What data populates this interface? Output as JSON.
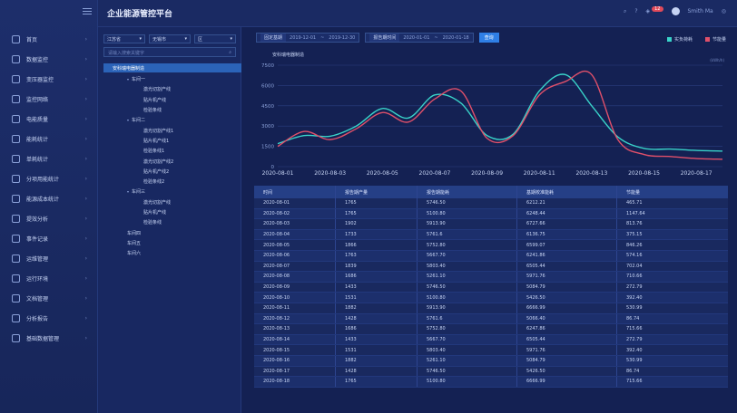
{
  "app": {
    "title": "企业能源管控平台",
    "user": "Smith Ma",
    "badge": "12"
  },
  "nav": [
    {
      "label": "首页"
    },
    {
      "label": "数据监控"
    },
    {
      "label": "变压器监控"
    },
    {
      "label": "监控网络"
    },
    {
      "label": "电能质量"
    },
    {
      "label": "能耗统计"
    },
    {
      "label": "单耗统计"
    },
    {
      "label": "分项用能统计"
    },
    {
      "label": "能源成本统计"
    },
    {
      "label": "提效分析"
    },
    {
      "label": "事件记录"
    },
    {
      "label": "运维管理"
    },
    {
      "label": "运行环境"
    },
    {
      "label": "文档管理"
    },
    {
      "label": "分析报告"
    },
    {
      "label": "基础数据管理"
    }
  ],
  "filters": {
    "province": "江苏省",
    "city": "无锡市",
    "district": "区",
    "search_placeholder": "请输入搜索关键字"
  },
  "tree": {
    "root": "安科瑞电器制造",
    "nodes": [
      {
        "label": "车间一",
        "level": 1,
        "arrow": "▾"
      },
      {
        "label": "激光切割产线",
        "level": 2
      },
      {
        "label": "贴片机产线",
        "level": 2
      },
      {
        "label": "检验条线",
        "level": 2
      },
      {
        "label": "车间二",
        "level": 1,
        "arrow": "▾"
      },
      {
        "label": "激光切割产线1",
        "level": 2
      },
      {
        "label": "贴片机产线1",
        "level": 2
      },
      {
        "label": "检验条线1",
        "level": 2
      },
      {
        "label": "激光切割产线2",
        "level": 2
      },
      {
        "label": "贴片机产线2",
        "level": 2
      },
      {
        "label": "检验条线2",
        "level": 2
      },
      {
        "label": "车间三",
        "level": 1,
        "arrow": "▾"
      },
      {
        "label": "激光切割产线",
        "level": 2
      },
      {
        "label": "贴片机产线",
        "level": 2
      },
      {
        "label": "检验条线",
        "level": 2
      },
      {
        "label": "车间四",
        "level": 1
      },
      {
        "label": "车间五",
        "level": 1
      },
      {
        "label": "车间六",
        "level": 1
      }
    ]
  },
  "toolbar": {
    "baseline_label": "固定基期",
    "baseline_start": "2019-12-01",
    "baseline_sep": "~",
    "baseline_end": "2019-12-30",
    "report_label": "报告期时间",
    "report_start": "2020-01-01",
    "report_sep": "~",
    "report_end": "2020-01-18",
    "query": "查询"
  },
  "legend": [
    {
      "name": "实负荷耗",
      "color": "#39d3c9"
    },
    {
      "name": "节能量",
      "color": "#e0506a"
    }
  ],
  "chart_title": "安科瑞电器制造",
  "chart_unit": "(kWh/h)",
  "chart_data": {
    "type": "line",
    "y_ticks": [
      0,
      1500,
      3000,
      4500,
      6000,
      7500
    ],
    "ylim": [
      0,
      7500
    ],
    "x_ticks": [
      "2020-08-01",
      "2020-08-03",
      "2020-08-05",
      "2020-08-07",
      "2020-08-09",
      "2020-08-11",
      "2020-08-13",
      "2020-08-15",
      "2020-08-17"
    ],
    "x": [
      "2020-08-01",
      "2020-08-02",
      "2020-08-03",
      "2020-08-04",
      "2020-08-05",
      "2020-08-06",
      "2020-08-07",
      "2020-08-08",
      "2020-08-09",
      "2020-08-10",
      "2020-08-11",
      "2020-08-12",
      "2020-08-13",
      "2020-08-14",
      "2020-08-15",
      "2020-08-16",
      "2020-08-17",
      "2020-08-18"
    ],
    "series": [
      {
        "name": "实负荷耗",
        "color": "#39d3c9",
        "values": [
          1700,
          2300,
          2250,
          3000,
          4300,
          3600,
          5300,
          4700,
          2300,
          2400,
          5600,
          6800,
          4500,
          2200,
          1350,
          1300,
          1200,
          1150
        ]
      },
      {
        "name": "节能量",
        "color": "#e0506a",
        "values": [
          1500,
          2600,
          2000,
          2800,
          4000,
          3300,
          5000,
          5600,
          2100,
          2300,
          5300,
          6300,
          6800,
          2000,
          900,
          750,
          600,
          550
        ]
      }
    ]
  },
  "table": {
    "headers": [
      "时间",
      "报告期产量",
      "报告期能耗",
      "基期校准能耗",
      "节能量"
    ],
    "rows": [
      [
        "2020-08-01",
        "1765",
        "5746.50",
        "6212.21",
        "465.71"
      ],
      [
        "2020-08-02",
        "1765",
        "5100.80",
        "6248.44",
        "1147.64"
      ],
      [
        "2020-08-03",
        "1902",
        "5913.90",
        "6727.66",
        "813.76"
      ],
      [
        "2020-08-04",
        "1733",
        "5761.6",
        "6136.75",
        "375.15"
      ],
      [
        "2020-08-05",
        "1866",
        "5752.80",
        "6599.07",
        "846.26"
      ],
      [
        "2020-08-06",
        "1763",
        "5667.70",
        "6241.86",
        "574.16"
      ],
      [
        "2020-08-07",
        "1839",
        "5803.40",
        "6505.44",
        "702.04"
      ],
      [
        "2020-08-08",
        "1686",
        "5261.10",
        "5971.76",
        "710.66"
      ],
      [
        "2020-08-09",
        "1433",
        "5746.50",
        "5084.79",
        "272.79"
      ],
      [
        "2020-08-10",
        "1531",
        "5100.80",
        "5426.50",
        "392.40"
      ],
      [
        "2020-08-11",
        "1882",
        "5913.90",
        "6666.99",
        "530.99"
      ],
      [
        "2020-08-12",
        "1428",
        "5761.6",
        "5066.40",
        "86.74"
      ],
      [
        "2020-08-13",
        "1686",
        "5752.80",
        "6247.86",
        "715.66"
      ],
      [
        "2020-08-14",
        "1433",
        "5667.70",
        "6505.44",
        "272.79"
      ],
      [
        "2020-08-15",
        "1531",
        "5803.40",
        "5971.76",
        "392.40"
      ],
      [
        "2020-08-16",
        "1882",
        "5261.10",
        "5084.79",
        "530.99"
      ],
      [
        "2020-08-17",
        "1428",
        "5746.50",
        "5426.50",
        "86.74"
      ],
      [
        "2020-08-18",
        "1765",
        "5100.80",
        "6666.99",
        "715.66"
      ]
    ]
  }
}
